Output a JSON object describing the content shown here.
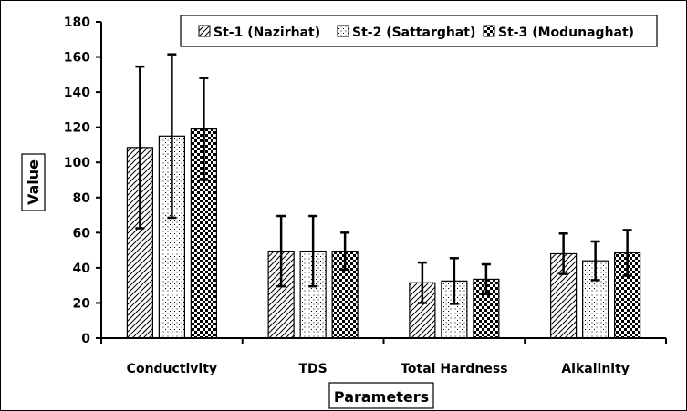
{
  "chart_data": {
    "type": "bar",
    "title": "",
    "xlabel": "Parameters",
    "ylabel": "Value",
    "ylim": [
      0,
      180
    ],
    "yticks": [
      0,
      20,
      40,
      60,
      80,
      100,
      120,
      140,
      160,
      180
    ],
    "grid": false,
    "legend_position": "top-right",
    "categories": [
      "Conductivity",
      "TDS",
      "Total Hardness",
      "Alkalinity"
    ],
    "series": [
      {
        "name": "St-1 (Nazirhat)",
        "pattern": "diagonal-hatch",
        "values": [
          108.5,
          49.5,
          31.5,
          48
        ],
        "errors": [
          46,
          20,
          11.5,
          11.5
        ]
      },
      {
        "name": "St-2 (Sattarghat)",
        "pattern": "dots",
        "values": [
          115,
          49.5,
          32.5,
          44
        ],
        "errors": [
          46.5,
          20,
          13,
          11
        ]
      },
      {
        "name": "St-3 (Modunaghat)",
        "pattern": "checkerboard",
        "values": [
          119,
          49.5,
          33.5,
          48.5
        ],
        "errors": [
          29,
          10.5,
          8.5,
          13
        ]
      }
    ]
  }
}
